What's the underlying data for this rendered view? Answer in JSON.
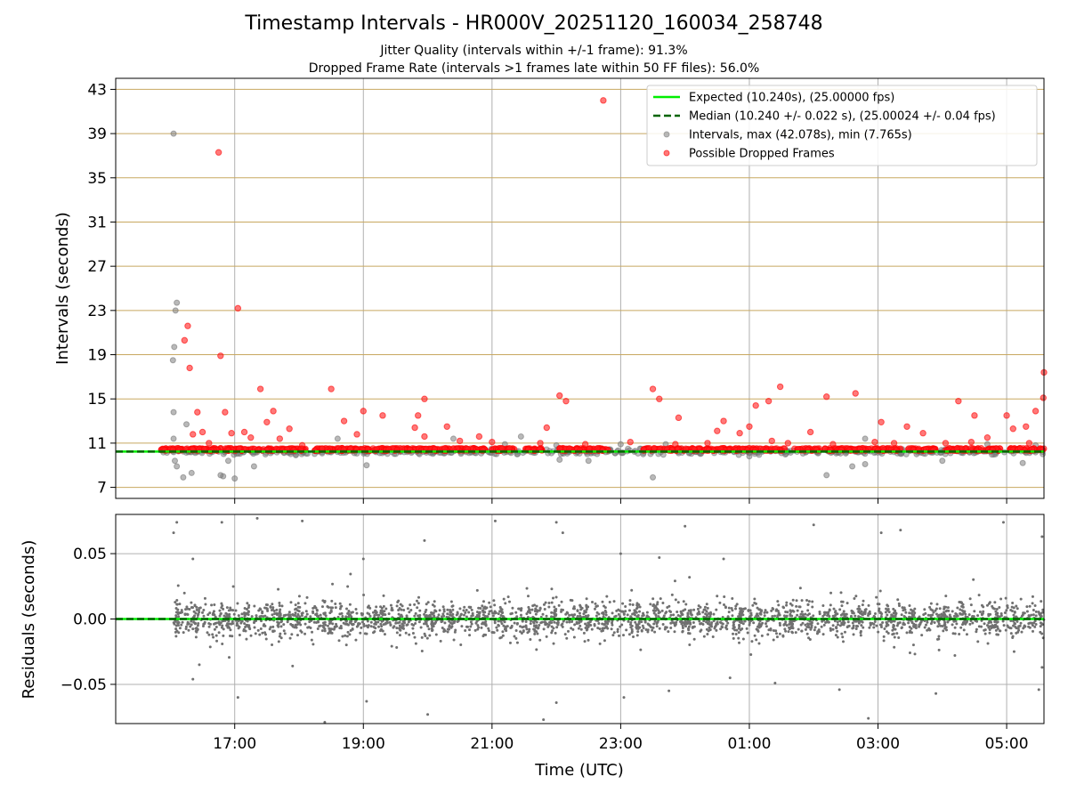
{
  "chart_data": {
    "type": "scatter",
    "title": "Timestamp Intervals - HR000V_20251120_160034_258748",
    "subtitle_1": "Jitter Quality (intervals within +/-1 frame): 91.3%",
    "subtitle_2": "Dropped Frame Rate (intervals >1 frames late within 50 FF files): 56.0%",
    "xlabel": "Time (UTC)",
    "x_axis": {
      "units": "hours_since_16:00_UTC",
      "range": [
        -0.85,
        13.58
      ],
      "ticks": [
        1,
        3,
        5,
        7,
        9,
        11,
        13
      ],
      "tick_labels": [
        "17:00",
        "19:00",
        "21:00",
        "23:00",
        "01:00",
        "03:00",
        "05:00"
      ]
    },
    "top_panel": {
      "ylabel": "Intervals (seconds)",
      "ylim": [
        6.0,
        44.0
      ],
      "yticks": [
        7,
        11,
        15,
        19,
        23,
        27,
        31,
        35,
        39,
        43
      ],
      "ytick_labels": [
        "7",
        "11",
        "15",
        "19",
        "23",
        "27",
        "31",
        "35",
        "39",
        "43"
      ],
      "expected_interval": 10.24,
      "median_interval": 10.24,
      "legend_position": "upper-right",
      "legend": [
        "Expected (10.240s), (25.00000 fps)",
        "Median (10.240 +/- 0.022 s), (25.00024 +/- 0.04 fps)",
        "Intervals, max (42.078s), min (7.765s)",
        "Possible Dropped Frames"
      ],
      "intervals_gray_outliers": [
        [
          0.05,
          39.0
        ],
        [
          0.1,
          23.7
        ],
        [
          0.08,
          23.0
        ],
        [
          0.06,
          19.7
        ],
        [
          0.04,
          18.5
        ],
        [
          0.05,
          13.8
        ],
        [
          0.05,
          11.4
        ],
        [
          0.07,
          9.4
        ],
        [
          0.1,
          8.9
        ],
        [
          0.2,
          7.9
        ],
        [
          0.25,
          12.7
        ],
        [
          0.33,
          8.3
        ],
        [
          0.82,
          8.0
        ],
        [
          0.78,
          8.1
        ],
        [
          0.9,
          9.4
        ],
        [
          1.0,
          7.8
        ],
        [
          1.3,
          8.9
        ],
        [
          1.95,
          9.9
        ],
        [
          2.6,
          11.4
        ],
        [
          3.05,
          9.0
        ],
        [
          4.05,
          10.2
        ],
        [
          4.4,
          11.4
        ],
        [
          4.75,
          10.1
        ],
        [
          5.2,
          10.9
        ],
        [
          5.45,
          11.6
        ],
        [
          6.0,
          10.8
        ],
        [
          6.05,
          9.5
        ],
        [
          6.5,
          9.4
        ],
        [
          7.0,
          10.9
        ],
        [
          7.3,
          10.5
        ],
        [
          7.35,
          10.0
        ],
        [
          7.5,
          7.9
        ],
        [
          7.7,
          10.9
        ],
        [
          9.0,
          9.8
        ],
        [
          9.5,
          10.1
        ],
        [
          10.2,
          8.1
        ],
        [
          10.6,
          8.9
        ],
        [
          10.8,
          9.1
        ],
        [
          10.8,
          11.4
        ],
        [
          11.6,
          10.0
        ],
        [
          12.0,
          9.4
        ],
        [
          12.5,
          10.4
        ],
        [
          12.7,
          10.9
        ],
        [
          13.25,
          9.2
        ],
        [
          13.45,
          10.8
        ]
      ],
      "dropped_frames": [
        [
          6.73,
          42.0
        ],
        [
          0.75,
          37.3
        ],
        [
          1.05,
          23.2
        ],
        [
          0.27,
          21.6
        ],
        [
          0.22,
          20.3
        ],
        [
          0.78,
          18.9
        ],
        [
          0.3,
          17.8
        ],
        [
          2.5,
          15.9
        ],
        [
          1.4,
          15.9
        ],
        [
          0.85,
          13.8
        ],
        [
          0.42,
          13.8
        ],
        [
          7.5,
          15.9
        ],
        [
          7.6,
          15.0
        ],
        [
          6.05,
          15.3
        ],
        [
          6.15,
          14.8
        ],
        [
          9.48,
          16.1
        ],
        [
          9.3,
          14.8
        ],
        [
          9.1,
          14.4
        ],
        [
          10.65,
          15.5
        ],
        [
          10.2,
          15.2
        ],
        [
          13.58,
          17.4
        ],
        [
          13.57,
          15.1
        ],
        [
          13.45,
          13.9
        ],
        [
          12.25,
          14.8
        ],
        [
          12.5,
          13.5
        ],
        [
          1.6,
          13.9
        ],
        [
          3.0,
          13.9
        ],
        [
          3.3,
          13.5
        ],
        [
          3.85,
          13.5
        ],
        [
          3.95,
          15.0
        ],
        [
          5.85,
          12.4
        ],
        [
          4.3,
          12.5
        ],
        [
          3.8,
          12.4
        ],
        [
          1.5,
          12.9
        ],
        [
          0.5,
          12.0
        ],
        [
          0.95,
          11.9
        ],
        [
          1.15,
          12.0
        ],
        [
          1.85,
          12.3
        ],
        [
          4.8,
          11.6
        ],
        [
          8.6,
          13.0
        ],
        [
          9.0,
          12.5
        ],
        [
          9.95,
          12.0
        ],
        [
          11.05,
          12.9
        ],
        [
          11.45,
          12.5
        ],
        [
          11.7,
          11.9
        ],
        [
          13.1,
          12.3
        ],
        [
          13.3,
          12.5
        ],
        [
          13.0,
          13.5
        ],
        [
          2.7,
          13.0
        ],
        [
          7.9,
          13.3
        ],
        [
          8.5,
          12.1
        ],
        [
          8.85,
          11.9
        ],
        [
          9.35,
          11.2
        ],
        [
          10.95,
          11.1
        ],
        [
          12.7,
          11.5
        ],
        [
          0.35,
          11.8
        ],
        [
          0.6,
          11.0
        ],
        [
          1.25,
          11.5
        ],
        [
          1.7,
          11.4
        ],
        [
          2.05,
          10.8
        ],
        [
          2.9,
          11.8
        ],
        [
          3.95,
          11.6
        ],
        [
          4.5,
          11.2
        ],
        [
          5.0,
          11.1
        ],
        [
          5.75,
          11.0
        ],
        [
          6.45,
          10.9
        ],
        [
          7.15,
          11.1
        ],
        [
          7.85,
          10.9
        ],
        [
          8.35,
          11.0
        ],
        [
          9.6,
          11.0
        ],
        [
          10.3,
          10.9
        ],
        [
          11.25,
          11.0
        ],
        [
          12.05,
          11.0
        ],
        [
          12.45,
          11.1
        ],
        [
          13.35,
          11.0
        ]
      ],
      "dropped_frame_bands": [
        [
          -0.15,
          0.8
        ],
        [
          0.85,
          2.1
        ],
        [
          2.2,
          4.9
        ],
        [
          5.0,
          5.35
        ],
        [
          5.5,
          5.8
        ],
        [
          6.05,
          6.85
        ],
        [
          7.35,
          9.55
        ],
        [
          9.7,
          10.1
        ],
        [
          10.15,
          11.35
        ],
        [
          11.45,
          11.9
        ],
        [
          12.05,
          12.9
        ],
        [
          13.05,
          13.58
        ]
      ]
    },
    "bottom_panel": {
      "ylabel": "Residuals (seconds)",
      "ylim": [
        -0.08,
        0.08
      ],
      "yticks": [
        -0.05,
        0.0,
        0.05
      ],
      "ytick_labels": [
        "−0.05",
        "0.00",
        "0.05"
      ],
      "residual_spread_sd": 0.012,
      "residual_outliers": [
        [
          0.05,
          0.066
        ],
        [
          0.1,
          0.074
        ],
        [
          0.35,
          0.046
        ],
        [
          0.8,
          0.074
        ],
        [
          1.35,
          0.077
        ],
        [
          2.05,
          0.075
        ],
        [
          3.0,
          0.046
        ],
        [
          3.95,
          0.06
        ],
        [
          5.05,
          0.075
        ],
        [
          6.1,
          0.066
        ],
        [
          6.0,
          0.074
        ],
        [
          7.0,
          0.05
        ],
        [
          7.6,
          0.047
        ],
        [
          8.0,
          0.071
        ],
        [
          8.6,
          0.046
        ],
        [
          10.0,
          0.072
        ],
        [
          11.05,
          0.066
        ],
        [
          11.35,
          0.068
        ],
        [
          12.95,
          0.074
        ],
        [
          13.55,
          0.063
        ],
        [
          0.35,
          -0.046
        ],
        [
          0.45,
          -0.035
        ],
        [
          1.05,
          -0.06
        ],
        [
          1.9,
          -0.036
        ],
        [
          2.4,
          -0.079
        ],
        [
          3.05,
          -0.063
        ],
        [
          4.0,
          -0.073
        ],
        [
          5.8,
          -0.077
        ],
        [
          6.0,
          -0.064
        ],
        [
          7.05,
          -0.06
        ],
        [
          7.75,
          -0.055
        ],
        [
          8.7,
          -0.045
        ],
        [
          9.4,
          -0.049
        ],
        [
          10.4,
          -0.054
        ],
        [
          10.85,
          -0.076
        ],
        [
          11.9,
          -0.057
        ],
        [
          13.5,
          -0.054
        ],
        [
          13.55,
          -0.037
        ]
      ]
    }
  }
}
